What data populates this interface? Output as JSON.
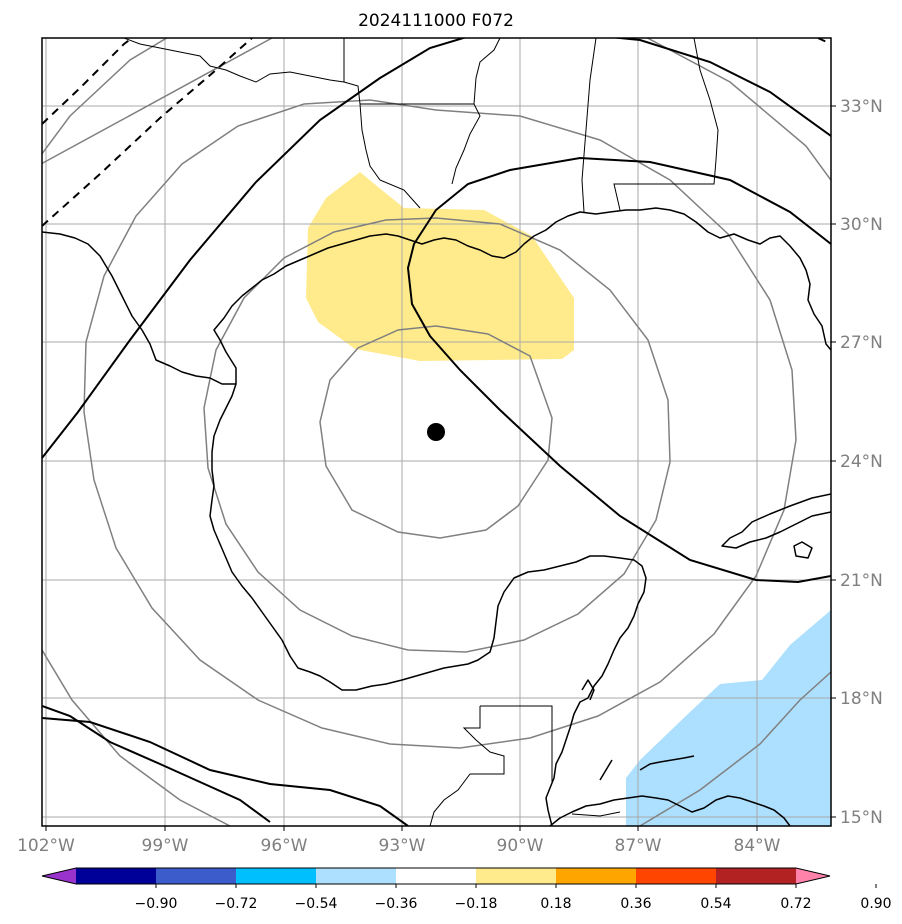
{
  "title": "2024111000 F072",
  "lat_labels": [
    "33°N",
    "30°N",
    "27°N",
    "24°N",
    "21°N",
    "18°N",
    "15°N"
  ],
  "lon_labels": [
    "102°W",
    "99°W",
    "96°W",
    "93°W",
    "90°W",
    "87°W",
    "84°W"
  ],
  "colorbar": {
    "labels": [
      "−0.90",
      "−0.72",
      "−0.54",
      "−0.36",
      "−0.18",
      "0.18",
      "0.36",
      "0.54",
      "0.72",
      "0.90"
    ],
    "colors": [
      "#9933cc",
      "#000099",
      "#3d5ccc",
      "#00bfff",
      "#addfff",
      "#ffffff",
      "#ffeb8c",
      "#ffa500",
      "#ff4500",
      "#b22222",
      "#ff82ab"
    ]
  },
  "colors": {
    "positive_shade": "#ffeb8c",
    "negative_shade": "#addfff",
    "coast": "#000000",
    "grid": "#a9a9a9",
    "range_ring": "#808080"
  },
  "center_marker": {
    "lon": -92.0,
    "lat": 24.7
  }
}
